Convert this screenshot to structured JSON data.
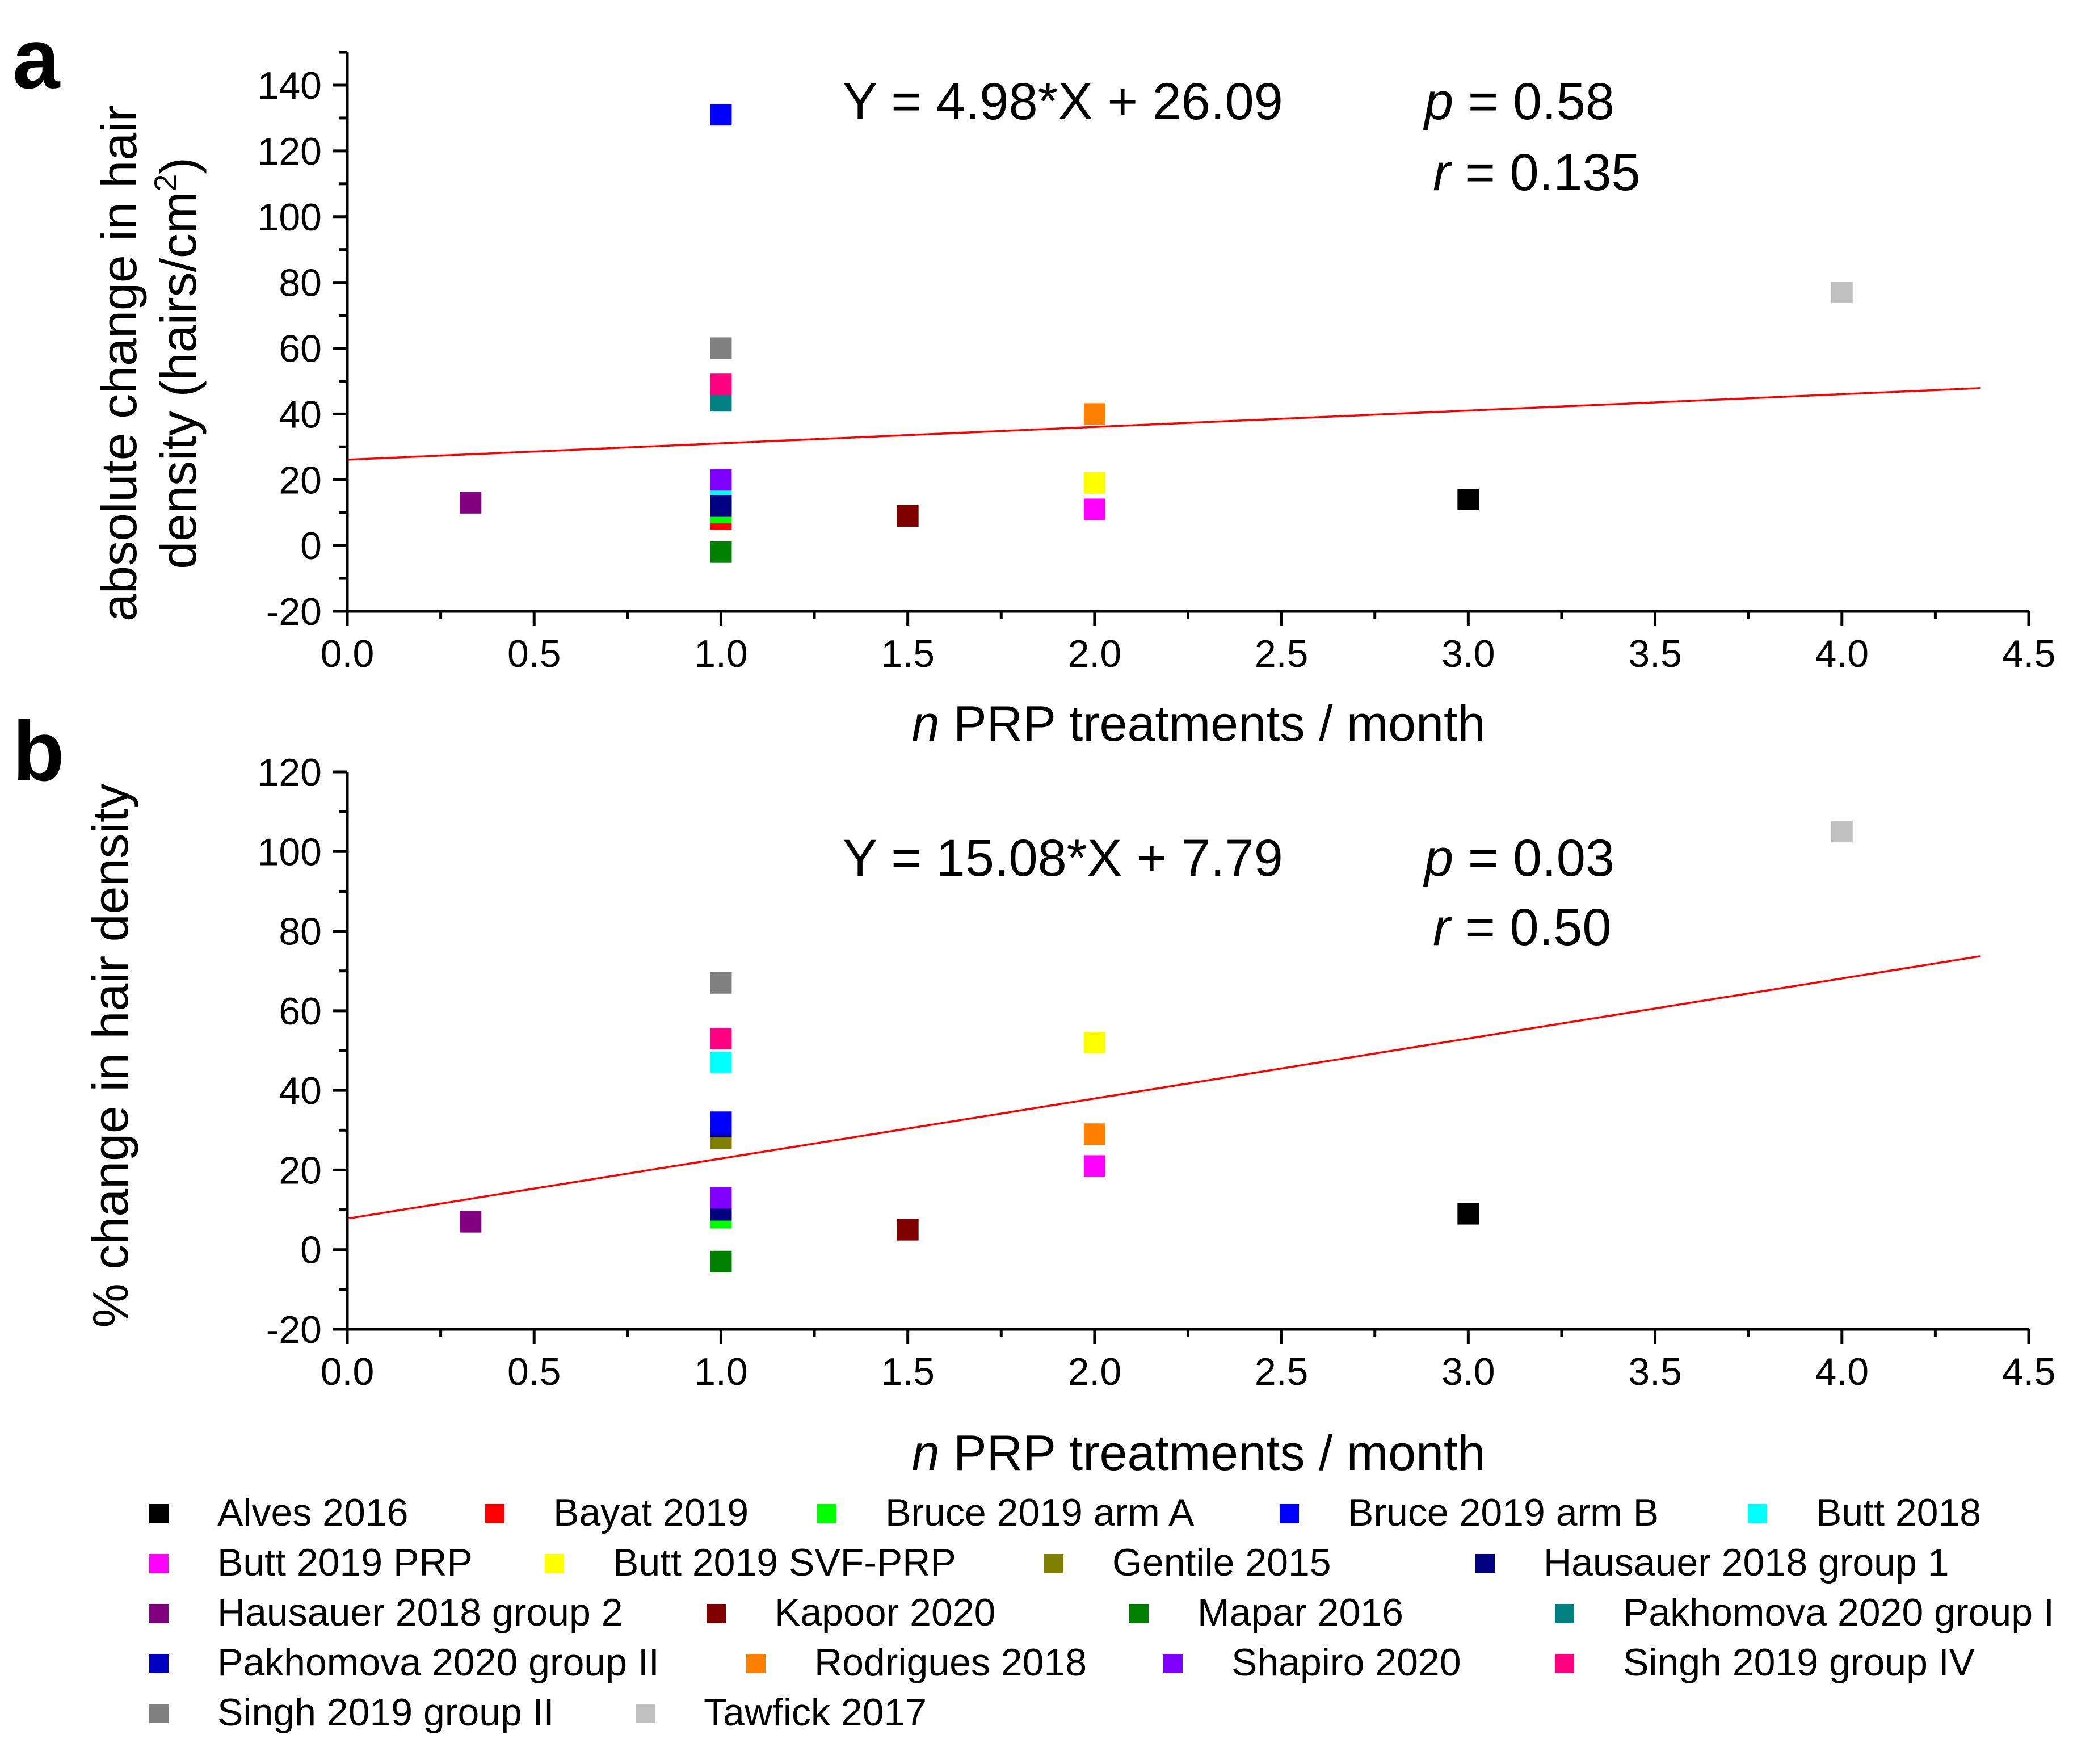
{
  "series": [
    {
      "name": "Alves 2016",
      "color": "#000000"
    },
    {
      "name": "Bayat 2019",
      "color": "#ff0000"
    },
    {
      "name": "Bruce 2019 arm A",
      "color": "#00ff00"
    },
    {
      "name": "Bruce 2019 arm B",
      "color": "#0000ff"
    },
    {
      "name": "Butt 2018",
      "color": "#00ffff"
    },
    {
      "name": "Butt 2019 PRP",
      "color": "#ff00ff"
    },
    {
      "name": "Butt 2019 SVF-PRP",
      "color": "#ffff00"
    },
    {
      "name": "Gentile 2015",
      "color": "#808000"
    },
    {
      "name": "Hausauer 2018 group 1",
      "color": "#000080"
    },
    {
      "name": "Hausauer 2018 group 2",
      "color": "#800080"
    },
    {
      "name": "Kapoor 2020",
      "color": "#800000"
    },
    {
      "name": "Mapar 2016",
      "color": "#008000"
    },
    {
      "name": "Pakhomova 2020 group I",
      "color": "#008080"
    },
    {
      "name": "Pakhomova 2020 group II",
      "color": "#0000c0"
    },
    {
      "name": "Rodrigues 2018",
      "color": "#ff8000"
    },
    {
      "name": "Shapiro 2020",
      "color": "#8000ff"
    },
    {
      "name": "Singh 2019 group IV",
      "color": "#ff0080"
    },
    {
      "name": "Singh 2019 group II",
      "color": "#808080"
    },
    {
      "name": "Tawfick 2017",
      "color": "#c0c0c0"
    }
  ],
  "chart_data": [
    {
      "panel": "a",
      "type": "scatter",
      "xlabel_italic": "n",
      "xlabel_rest": " PRP treatments / month",
      "ylabel_line1": "absolute change in hair",
      "ylabel_line2_main": "density (hairs/cm",
      "ylabel_line2_sup": "2",
      "ylabel_line2_end": ")",
      "xlim": [
        0.0,
        4.5
      ],
      "ylim": [
        -20,
        150
      ],
      "xticks": [
        "0.0",
        "0.5",
        "1.0",
        "1.5",
        "2.0",
        "2.5",
        "3.0",
        "3.5",
        "4.0",
        "4.5"
      ],
      "yticks": [
        "-20",
        "0",
        "20",
        "40",
        "60",
        "80",
        "100",
        "120",
        "140"
      ],
      "equation": "Y = 4.98*X + 26.09",
      "p_italic": "p",
      "p_rest": " = 0.58",
      "r_italic": "r",
      "r_rest": " = 0.135",
      "fit": {
        "slope": 4.98,
        "intercept": 26.09,
        "x_range": [
          0.0,
          4.37
        ]
      },
      "points": [
        {
          "series": "Alves 2016",
          "x": 3.0,
          "y": 14
        },
        {
          "series": "Bayat 2019",
          "x": 1.0,
          "y": 8
        },
        {
          "series": "Bruce 2019 arm A",
          "x": 1.0,
          "y": 10
        },
        {
          "series": "Bruce 2019 arm B",
          "x": 1.0,
          "y": 131
        },
        {
          "series": "Butt 2018",
          "x": 1.0,
          "y": 14
        },
        {
          "series": "Butt 2019 PRP",
          "x": 2.0,
          "y": 11
        },
        {
          "series": "Butt 2019 SVF-PRP",
          "x": 2.0,
          "y": 19
        },
        {
          "series": "Gentile 2015",
          "x": 1.0,
          "y": 12
        },
        {
          "series": "Hausauer 2018 group 1",
          "x": 1.0,
          "y": 12
        },
        {
          "series": "Hausauer 2018 group 2",
          "x": 0.33,
          "y": 13
        },
        {
          "series": "Kapoor 2020",
          "x": 1.5,
          "y": 9
        },
        {
          "series": "Mapar 2016",
          "x": 1.0,
          "y": -2
        },
        {
          "series": "Pakhomova 2020 group I",
          "x": 1.0,
          "y": 44
        },
        {
          "series": "Shapiro 2020",
          "x": 1.0,
          "y": 20
        },
        {
          "series": "Rodrigues 2018",
          "x": 2.0,
          "y": 40
        },
        {
          "series": "Singh 2019 group IV",
          "x": 1.0,
          "y": 49
        },
        {
          "series": "Singh 2019 group II",
          "x": 1.0,
          "y": 60
        },
        {
          "series": "Tawfick 2017",
          "x": 4.0,
          "y": 77
        }
      ]
    },
    {
      "panel": "b",
      "type": "scatter",
      "xlabel_italic": "n",
      "xlabel_rest": " PRP treatments / month",
      "ylabel": "% change in hair density",
      "xlim": [
        0.0,
        4.5
      ],
      "ylim": [
        -20,
        120
      ],
      "xticks": [
        "0.0",
        "0.5",
        "1.0",
        "1.5",
        "2.0",
        "2.5",
        "3.0",
        "3.5",
        "4.0",
        "4.5"
      ],
      "yticks": [
        "-20",
        "0",
        "20",
        "40",
        "60",
        "80",
        "100",
        "120"
      ],
      "equation": "Y = 15.08*X + 7.79",
      "p_italic": "p",
      "p_rest": " = 0.03",
      "r_italic": "r",
      "r_rest": " = 0.50",
      "fit": {
        "slope": 15.08,
        "intercept": 7.79,
        "x_range": [
          0.0,
          4.37
        ]
      },
      "points": [
        {
          "series": "Alves 2016",
          "x": 3.0,
          "y": 9
        },
        {
          "series": "Bayat 2019",
          "x": 1.0,
          "y": 28
        },
        {
          "series": "Gentile 2015",
          "x": 1.0,
          "y": 28
        },
        {
          "series": "Bruce 2019 arm A",
          "x": 1.0,
          "y": 8
        },
        {
          "series": "Hausauer 2018 group 1",
          "x": 1.0,
          "y": 10
        },
        {
          "series": "Pakhomova 2020 group II",
          "x": 1.0,
          "y": 31
        },
        {
          "series": "Bruce 2019 arm B",
          "x": 1.0,
          "y": 32
        },
        {
          "series": "Butt 2018",
          "x": 1.0,
          "y": 47
        },
        {
          "series": "Butt 2019 PRP",
          "x": 2.0,
          "y": 21
        },
        {
          "series": "Butt 2019 SVF-PRP",
          "x": 2.0,
          "y": 52
        },
        {
          "series": "Hausauer 2018 group 2",
          "x": 0.33,
          "y": 7
        },
        {
          "series": "Kapoor 2020",
          "x": 1.5,
          "y": 5
        },
        {
          "series": "Mapar 2016",
          "x": 1.0,
          "y": -3
        },
        {
          "series": "Rodrigues 2018",
          "x": 2.0,
          "y": 29
        },
        {
          "series": "Shapiro 2020",
          "x": 1.0,
          "y": 13
        },
        {
          "series": "Singh 2019 group IV",
          "x": 1.0,
          "y": 53
        },
        {
          "series": "Singh 2019 group II",
          "x": 1.0,
          "y": 67
        },
        {
          "series": "Tawfick 2017",
          "x": 4.0,
          "y": 105
        }
      ]
    }
  ]
}
